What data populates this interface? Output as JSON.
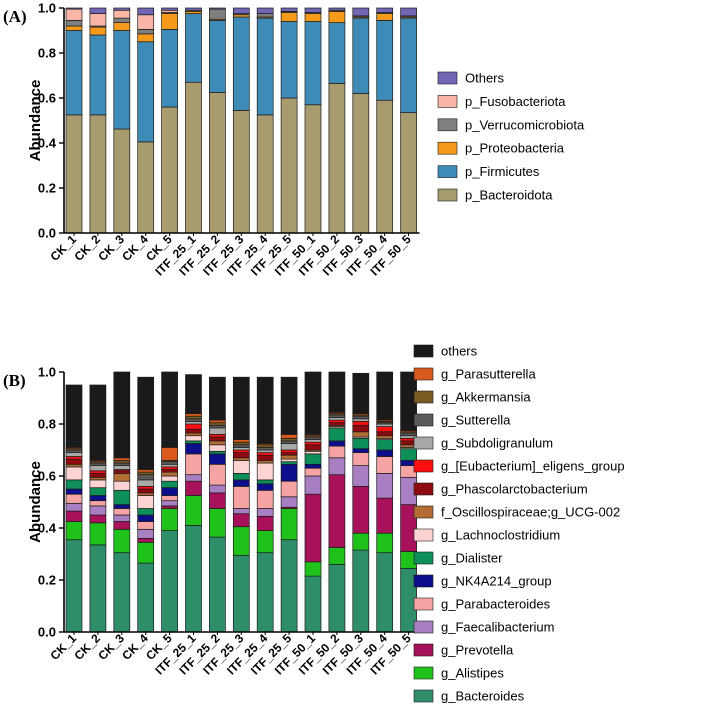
{
  "chart_data": [
    {
      "type": "bar",
      "stacked": true,
      "panel_label": "(A)",
      "ylabel": "Abundance",
      "xlabel": "",
      "ylim": [
        0,
        1.0
      ],
      "yticks": [
        "0.0",
        "0.2",
        "0.4",
        "0.6",
        "0.8",
        "1.0"
      ],
      "categories": [
        "CK_1",
        "CK_2",
        "CK_3",
        "CK_4",
        "CK_5",
        "ITF_25_1",
        "ITF_25_2",
        "ITF_25_3",
        "ITF_25_4",
        "ITF_25_5",
        "ITF_50_1",
        "ITF_50_2",
        "ITF_50_3",
        "ITF_50_4",
        "ITF_50_5"
      ],
      "series": [
        {
          "name": "p_Bacteroidota",
          "color": "#a89b6e",
          "values": [
            0.525,
            0.525,
            0.462,
            0.405,
            0.56,
            0.67,
            0.625,
            0.545,
            0.525,
            0.6,
            0.57,
            0.665,
            0.62,
            0.59,
            0.535
          ]
        },
        {
          "name": "p_Firmicutes",
          "color": "#3f8bb8",
          "values": [
            0.375,
            0.355,
            0.438,
            0.445,
            0.345,
            0.305,
            0.32,
            0.415,
            0.43,
            0.34,
            0.37,
            0.27,
            0.335,
            0.355,
            0.42
          ]
        },
        {
          "name": "p_Proteobacteria",
          "color": "#f59a1a",
          "values": [
            0.02,
            0.035,
            0.035,
            0.035,
            0.07,
            0.01,
            0.005,
            0.01,
            0.005,
            0.04,
            0.035,
            0.05,
            0.005,
            0.03,
            0.005
          ]
        },
        {
          "name": "p_Verrucomicrobiota",
          "color": "#7f7f7f",
          "values": [
            0.025,
            0.005,
            0.02,
            0.02,
            0.005,
            0.005,
            0.045,
            0.005,
            0.015,
            0.005,
            0.005,
            0.005,
            0.005,
            0.005,
            0.005
          ]
        },
        {
          "name": "p_Fusobacteriota",
          "color": "#f9b5a5",
          "values": [
            0.05,
            0.055,
            0.035,
            0.065,
            0.01,
            0.0,
            0.0,
            0.0,
            0.0,
            0.0,
            0.0,
            0.0,
            0.0,
            0.0,
            0.0
          ]
        },
        {
          "name": "Others",
          "color": "#7066b3",
          "values": [
            0.005,
            0.025,
            0.01,
            0.03,
            0.01,
            0.01,
            0.005,
            0.025,
            0.025,
            0.015,
            0.02,
            0.01,
            0.035,
            0.02,
            0.035
          ]
        }
      ]
    },
    {
      "type": "bar",
      "stacked": true,
      "panel_label": "(B)",
      "ylabel": "Abundance",
      "xlabel": "",
      "ylim": [
        0,
        1.0
      ],
      "yticks": [
        "0.0",
        "0.2",
        "0.4",
        "0.6",
        "0.8",
        "1.0"
      ],
      "categories": [
        "CK_1",
        "CK_2",
        "CK_3",
        "CK_4",
        "CK_5",
        "ITF_25_1",
        "ITF_25_2",
        "ITF_25_3",
        "ITF_25_4",
        "ITF_25_5",
        "ITF_50_1",
        "ITF_50_2",
        "ITF_50_3",
        "ITF_50_4",
        "ITF_50_5"
      ],
      "series": [
        {
          "name": "g_Bacteroides",
          "color": "#2f8e6a",
          "values": [
            0.355,
            0.335,
            0.305,
            0.265,
            0.39,
            0.41,
            0.365,
            0.295,
            0.305,
            0.355,
            0.215,
            0.26,
            0.315,
            0.305,
            0.245
          ]
        },
        {
          "name": "g_Alistipes",
          "color": "#1fc21a",
          "values": [
            0.07,
            0.085,
            0.09,
            0.08,
            0.085,
            0.115,
            0.11,
            0.11,
            0.085,
            0.12,
            0.055,
            0.065,
            0.065,
            0.075,
            0.065
          ]
        },
        {
          "name": "g_Prevotella",
          "color": "#a8125a",
          "values": [
            0.04,
            0.03,
            0.03,
            0.015,
            0.01,
            0.055,
            0.06,
            0.05,
            0.055,
            0.005,
            0.26,
            0.28,
            0.18,
            0.135,
            0.18
          ]
        },
        {
          "name": "g_Faecalibacterium",
          "color": "#a77fc2",
          "values": [
            0.03,
            0.035,
            0.025,
            0.035,
            0.02,
            0.025,
            0.03,
            0.02,
            0.03,
            0.04,
            0.07,
            0.065,
            0.08,
            0.095,
            0.105
          ]
        },
        {
          "name": "g_Parabacteroides",
          "color": "#f5a3a3",
          "values": [
            0.035,
            0.02,
            0.025,
            0.03,
            0.02,
            0.08,
            0.08,
            0.085,
            0.07,
            0.06,
            0.03,
            0.045,
            0.05,
            0.065,
            0.045
          ]
        },
        {
          "name": "g_NK4A214_group",
          "color": "#0d0e8c",
          "values": [
            0.02,
            0.02,
            0.015,
            0.025,
            0.03,
            0.04,
            0.04,
            0.025,
            0.025,
            0.065,
            0.015,
            0.02,
            0.015,
            0.025,
            0.02
          ]
        },
        {
          "name": "g_Dialister",
          "color": "#0e8f5a",
          "values": [
            0.035,
            0.03,
            0.055,
            0.025,
            0.025,
            0.01,
            0.01,
            0.025,
            0.015,
            0.01,
            0.04,
            0.05,
            0.04,
            0.04,
            0.045
          ]
        },
        {
          "name": "g_Lachnoclostridium",
          "color": "#fcd3d3",
          "values": [
            0.05,
            0.03,
            0.035,
            0.05,
            0.02,
            0.02,
            0.025,
            0.05,
            0.065,
            0.01,
            0.01,
            0.005,
            0.005,
            0.005,
            0.005
          ]
        },
        {
          "name": "f_Oscillospiraceae;g_UCG-002",
          "color": "#b36e36",
          "values": [
            0.01,
            0.01,
            0.03,
            0.01,
            0.015,
            0.01,
            0.015,
            0.01,
            0.01,
            0.015,
            0.005,
            0.005,
            0.02,
            0.01,
            0.01
          ]
        },
        {
          "name": "g_Phascolarctobacterium",
          "color": "#8e0a10",
          "values": [
            0.02,
            0.015,
            0.01,
            0.015,
            0.01,
            0.015,
            0.015,
            0.02,
            0.02,
            0.01,
            0.02,
            0.01,
            0.025,
            0.015,
            0.015
          ]
        },
        {
          "name": "g_[Eubacterium]_eligens_group",
          "color": "#ff1010",
          "values": [
            0.01,
            0.01,
            0.005,
            0.01,
            0.01,
            0.02,
            0.01,
            0.01,
            0.01,
            0.01,
            0.01,
            0.01,
            0.015,
            0.02,
            0.01
          ]
        },
        {
          "name": "g_Subdoligranulum",
          "color": "#a9a9a9",
          "values": [
            0.015,
            0.02,
            0.015,
            0.025,
            0.01,
            0.01,
            0.025,
            0.01,
            0.01,
            0.025,
            0.01,
            0.01,
            0.01,
            0.01,
            0.01
          ]
        },
        {
          "name": "g_Sutterella",
          "color": "#5a5a5a",
          "values": [
            0.01,
            0.01,
            0.01,
            0.02,
            0.01,
            0.01,
            0.01,
            0.01,
            0.01,
            0.01,
            0.01,
            0.01,
            0.01,
            0.005,
            0.01
          ]
        },
        {
          "name": "g_Akkermansia",
          "color": "#7b5a24",
          "values": [
            0.005,
            0.005,
            0.01,
            0.01,
            0.005,
            0.01,
            0.01,
            0.01,
            0.01,
            0.01,
            0.005,
            0.005,
            0.005,
            0.005,
            0.005
          ]
        },
        {
          "name": "g_Parasutterella",
          "color": "#d95a1c",
          "values": [
            0.005,
            0.005,
            0.01,
            0.01,
            0.05,
            0.01,
            0.01,
            0.01,
            0.005,
            0.015,
            0.005,
            0.005,
            0.005,
            0.005,
            0.005
          ]
        },
        {
          "name": "others",
          "color": "#1a1a1a",
          "values": [
            0.24,
            0.29,
            0.33,
            0.355,
            0.29,
            0.15,
            0.165,
            0.24,
            0.255,
            0.22,
            0.24,
            0.16,
            0.155,
            0.185,
            0.225
          ]
        }
      ]
    }
  ]
}
